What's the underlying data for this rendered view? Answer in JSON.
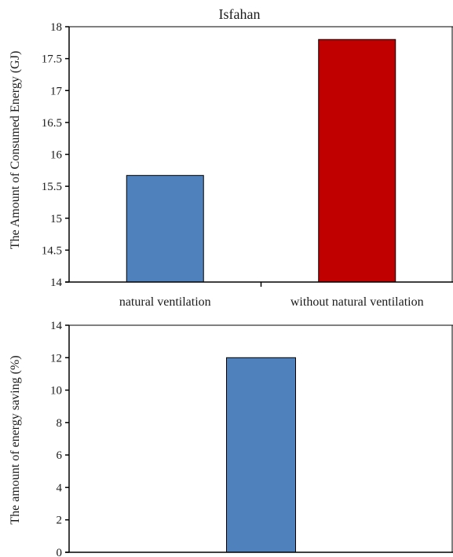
{
  "chart_data": [
    {
      "type": "bar",
      "title": "Isfahan",
      "ylabel": "The Amount of Consumed Energy (GJ)",
      "xlabel": "",
      "categories": [
        "natural ventilation",
        "without natural ventilation"
      ],
      "values": [
        15.67,
        17.8
      ],
      "ylim": [
        14,
        18
      ],
      "yticks": [
        14,
        14.5,
        15,
        15.5,
        16,
        16.5,
        17,
        17.5,
        18
      ],
      "ytick_labels": [
        "14",
        "14.5",
        "15",
        "15.5",
        "16",
        "16.5",
        "17",
        "17.5",
        "18"
      ],
      "bar_colors": [
        "#4f81bd",
        "#c00000"
      ],
      "grid": false,
      "legend": "none"
    },
    {
      "type": "bar",
      "title": "",
      "ylabel": "The amount of energy saving (%)",
      "xlabel": "",
      "categories": [
        ""
      ],
      "values": [
        12
      ],
      "ylim": [
        0,
        14
      ],
      "yticks": [
        0,
        2,
        4,
        6,
        8,
        10,
        12,
        14
      ],
      "ytick_labels": [
        "0",
        "2",
        "4",
        "6",
        "8",
        "10",
        "12",
        "14"
      ],
      "bar_colors": [
        "#4f81bd"
      ],
      "grid": false,
      "legend": "none"
    }
  ]
}
